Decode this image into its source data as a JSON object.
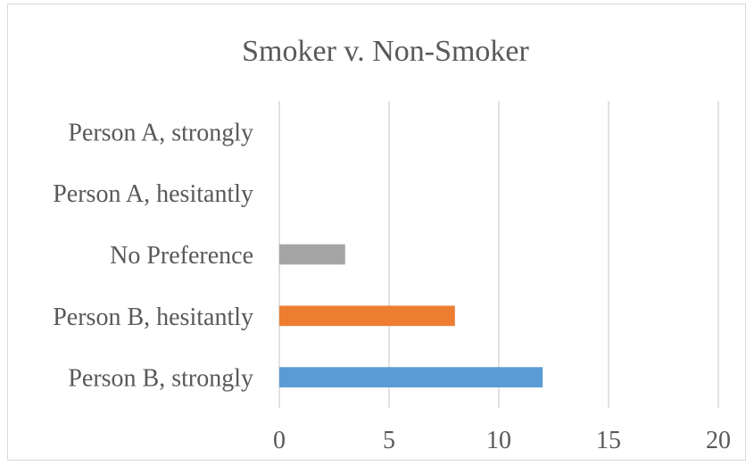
{
  "chart_data": {
    "type": "bar",
    "orientation": "horizontal",
    "title": "Smoker v. Non-Smoker",
    "categories": [
      "Person A, strongly",
      "Person A, hesitantly",
      "No Preference",
      "Person B, hesitantly",
      "Person B, strongly"
    ],
    "values": [
      0,
      0,
      3,
      8,
      12
    ],
    "bar_colors": [
      "#5b9bd5",
      "#ed7d31",
      "#a5a5a5",
      "#ffc000",
      "#4472c4"
    ],
    "xlim": [
      0,
      20
    ],
    "xticks": [
      "0",
      "5",
      "10",
      "15",
      "20"
    ],
    "grid": true,
    "legend": "none"
  }
}
